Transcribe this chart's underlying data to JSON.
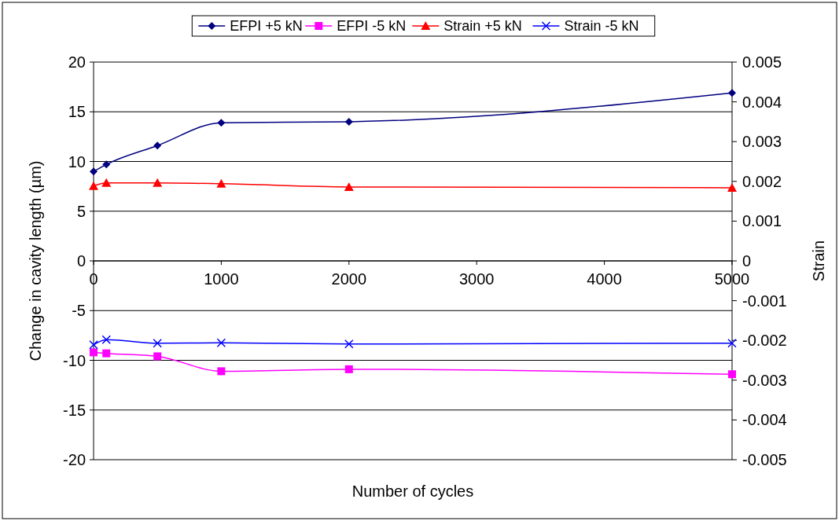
{
  "chart_data": {
    "type": "line",
    "xlabel": "Number of cycles",
    "ylabel": "Change in cavity length (µm)",
    "y2label": "Strain",
    "xlim": [
      0,
      5000
    ],
    "xticks": [
      0,
      1000,
      2000,
      3000,
      4000,
      5000
    ],
    "ylim": [
      -20,
      20
    ],
    "yticks": [
      -20,
      -15,
      -10,
      -5,
      0,
      5,
      10,
      15,
      20
    ],
    "y2lim": [
      -0.005,
      0.005
    ],
    "y2ticks": [
      -0.005,
      -0.004,
      -0.003,
      -0.002,
      -0.001,
      0,
      0.001,
      0.002,
      0.003,
      0.004,
      0.005
    ],
    "grid": "y",
    "legend": "top",
    "line_style": "solid",
    "series": [
      {
        "name": "EFPI +5 kN",
        "color": "#000080",
        "marker": "diamond",
        "x": [
          0,
          100,
          500,
          1000,
          2000,
          5000
        ],
        "values": [
          9.0,
          9.7,
          11.6,
          13.9,
          14.0,
          16.9
        ]
      },
      {
        "name": "EFPI -5 kN",
        "color": "#ff00ff",
        "marker": "square",
        "x": [
          0,
          100,
          500,
          1000,
          2000,
          5000
        ],
        "values": [
          -9.2,
          -9.3,
          -9.6,
          -11.1,
          -10.9,
          -11.4
        ]
      },
      {
        "name": "Strain +5 kN",
        "color": "#ff0000",
        "marker": "triangle",
        "axis": "y2",
        "x": [
          0,
          100,
          500,
          1000,
          2000,
          5000
        ],
        "values": [
          0.00188,
          0.00196,
          0.00196,
          0.00194,
          0.00186,
          0.00184
        ]
      },
      {
        "name": "Strain -5 kN",
        "color": "#0000ff",
        "marker": "cross",
        "axis": "y2",
        "x": [
          0,
          100,
          500,
          1000,
          2000,
          5000
        ],
        "values": [
          -0.00211,
          -0.00198,
          -0.00207,
          -0.00206,
          -0.00209,
          -0.00207
        ]
      }
    ]
  }
}
